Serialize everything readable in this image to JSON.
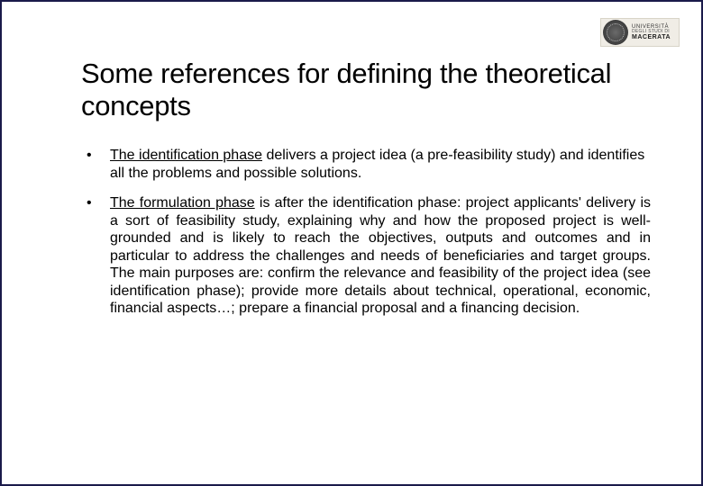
{
  "logo": {
    "line1": "UNIVERSITÀ",
    "line2": "DEGLI STUDI DI",
    "line3": "MACERATA"
  },
  "title": "Some references for defining the theoretical concepts",
  "bullets": [
    {
      "lead_underlined": "The identification phase",
      "rest": " delivers a project idea (a pre-feasibility study) and identifies all the problems and possible solutions.",
      "justify": false
    },
    {
      "lead_underlined": "The formulation phase",
      "rest": " is after the identification phase: project applicants' delivery is  a sort of feasibility study, explaining why and how the proposed project is well-grounded and is likely to reach the objectives, outputs and outcomes and in particular to address the challenges and needs of beneficiaries and target groups. The main purposes are: confirm the relevance and feasibility of the project idea (see identification phase); provide more details about technical, operational, economic, financial aspects…; prepare a financial proposal and a financing decision.",
      "justify": true
    }
  ]
}
